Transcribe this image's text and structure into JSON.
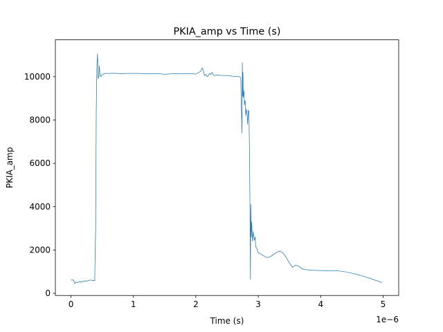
{
  "chart_data": {
    "type": "line",
    "title": "PKIA_amp vs Time (s)",
    "xlabel": "Time (s)",
    "ylabel": "PKIA_amp",
    "x_offset_label": "1e−6",
    "xlim": [
      -0.25,
      5.25
    ],
    "ylim": [
      -100,
      11700
    ],
    "xticks": [
      0,
      1,
      2,
      3,
      4,
      5
    ],
    "xtick_labels": [
      "0",
      "1",
      "2",
      "3",
      "4",
      "5"
    ],
    "yticks": [
      0,
      2000,
      4000,
      6000,
      8000,
      10000
    ],
    "ytick_labels": [
      "0",
      "2000",
      "4000",
      "6000",
      "8000",
      "10000"
    ],
    "grid": false,
    "legend": "none",
    "series": [
      {
        "color": "#1f77b4",
        "x": [
          0.0,
          0.02,
          0.04,
          0.06,
          0.08,
          0.1,
          0.12,
          0.14,
          0.16,
          0.18,
          0.2,
          0.22,
          0.24,
          0.26,
          0.28,
          0.3,
          0.32,
          0.34,
          0.36,
          0.38,
          0.395,
          0.405,
          0.415,
          0.425,
          0.435,
          0.445,
          0.455,
          0.465,
          0.48,
          0.5,
          0.55,
          0.6,
          0.7,
          0.8,
          0.9,
          1.0,
          1.1,
          1.2,
          1.3,
          1.4,
          1.5,
          1.6,
          1.7,
          1.8,
          1.9,
          2.0,
          2.05,
          2.08,
          2.1,
          2.12,
          2.14,
          2.16,
          2.18,
          2.2,
          2.22,
          2.24,
          2.26,
          2.28,
          2.3,
          2.35,
          2.4,
          2.5,
          2.6,
          2.7,
          2.72,
          2.73,
          2.74,
          2.745,
          2.75,
          2.755,
          2.76,
          2.77,
          2.78,
          2.79,
          2.8,
          2.81,
          2.82,
          2.83,
          2.84,
          2.85,
          2.86,
          2.87,
          2.875,
          2.88,
          2.885,
          2.89,
          2.895,
          2.9,
          2.91,
          2.92,
          2.93,
          2.94,
          2.95,
          2.96,
          2.98,
          3.0,
          3.05,
          3.1,
          3.15,
          3.2,
          3.25,
          3.3,
          3.35,
          3.4,
          3.45,
          3.5,
          3.55,
          3.6,
          3.65,
          3.7,
          3.75,
          3.8,
          3.9,
          4.0,
          4.1,
          4.2,
          4.3,
          4.4,
          4.5,
          4.6,
          4.7,
          4.8,
          4.9,
          4.98
        ],
        "y": [
          620,
          610,
          620,
          450,
          520,
          500,
          510,
          550,
          500,
          560,
          530,
          580,
          560,
          570,
          600,
          600,
          620,
          580,
          600,
          580,
          3000,
          8500,
          10500,
          11050,
          9900,
          10000,
          10500,
          10050,
          10000,
          10100,
          10150,
          10150,
          10160,
          10140,
          10150,
          10150,
          10150,
          10130,
          10140,
          10140,
          10110,
          10130,
          10140,
          10130,
          10150,
          10120,
          10200,
          10250,
          10400,
          10300,
          10050,
          10100,
          10000,
          10050,
          10150,
          10100,
          10200,
          10080,
          10050,
          10080,
          10060,
          10050,
          10020,
          10000,
          9950,
          8500,
          7400,
          10650,
          9100,
          10200,
          9050,
          9350,
          8700,
          8900,
          8200,
          8500,
          8300,
          7800,
          8450,
          8400,
          6500,
          2800,
          650,
          4100,
          3300,
          2600,
          3300,
          2900,
          2400,
          2850,
          2600,
          2450,
          2600,
          2150,
          2050,
          1880,
          1800,
          1700,
          1650,
          1700,
          1800,
          1900,
          1950,
          1850,
          1650,
          1400,
          1200,
          1300,
          1250,
          1130,
          1100,
          1080,
          1060,
          1050,
          1040,
          1040,
          1030,
          990,
          930,
          860,
          770,
          680,
          580,
          500
        ]
      }
    ]
  }
}
